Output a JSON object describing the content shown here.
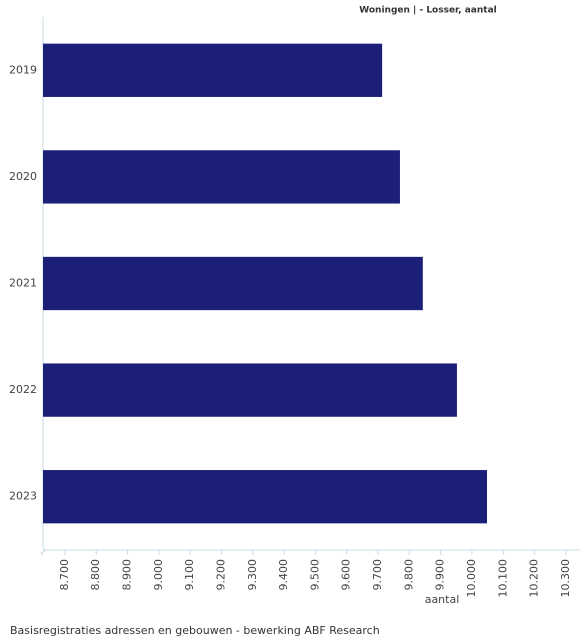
{
  "chart_data": {
    "type": "hbar",
    "title": "Woningen | - Losser, aantal",
    "categories": [
      "2019",
      "2020",
      "2021",
      "2022",
      "2023"
    ],
    "values": [
      9713,
      9770,
      9843,
      9952,
      10048
    ],
    "color": "#1b1f78",
    "xlabel": "aantal",
    "xlim": [
      8630,
      10345
    ],
    "xticks": [
      {
        "value": 8700,
        "label": "8.700"
      },
      {
        "value": 8800,
        "label": "8.800"
      },
      {
        "value": 8900,
        "label": "8.900"
      },
      {
        "value": 9000,
        "label": "9.000"
      },
      {
        "value": 9100,
        "label": "9.100"
      },
      {
        "value": 9200,
        "label": "9.200"
      },
      {
        "value": 9300,
        "label": "9.300"
      },
      {
        "value": 9400,
        "label": "9.400"
      },
      {
        "value": 9500,
        "label": "9.500"
      },
      {
        "value": 9600,
        "label": "9.600"
      },
      {
        "value": 9700,
        "label": "9.700"
      },
      {
        "value": 9800,
        "label": "9.800"
      },
      {
        "value": 9900,
        "label": "9.900"
      },
      {
        "value": 10000,
        "label": "10.000"
      },
      {
        "value": 10100,
        "label": "10.100"
      },
      {
        "value": 10200,
        "label": "10.200"
      },
      {
        "value": 10300,
        "label": "10.300"
      }
    ],
    "source": "Basisregistraties adressen en gebouwen - bewerking ABF Research"
  }
}
